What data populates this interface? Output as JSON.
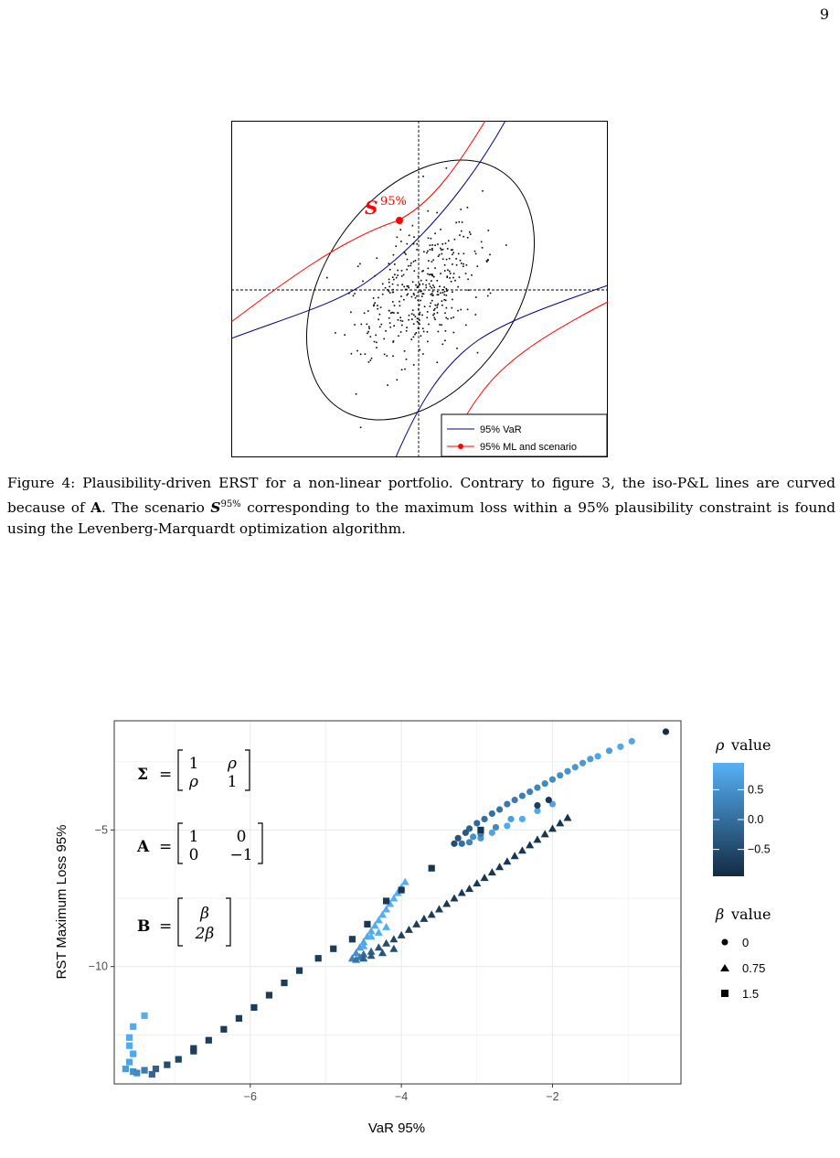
{
  "page_number": "9",
  "figure4": {
    "scenario_label": "S",
    "scenario_superscript": "95%",
    "legend": [
      {
        "label": "95% VaR",
        "color": "#00008b"
      },
      {
        "label": "95% ML and scenario",
        "color": "#ff0000"
      }
    ],
    "colors": {
      "var": "#00008b",
      "ml": "#ff0000",
      "ellipse": "#000000"
    }
  },
  "caption": {
    "p1": "Figure 4: Plausibility-driven ERST for a non-linear portfolio. Contrary to figure 3, the iso-P&L lines are curved because of ",
    "bold_A": "A",
    "p2": ". The scenario ",
    "bold_S": "S",
    "sup": "95%",
    "p3": " corresponding to the maximum loss within a 95% plausibility constraint is found using the Levenberg-Marquardt optimization algorithm."
  },
  "chart_data": {
    "type": "scatter",
    "xlabel": "VaR 95%",
    "ylabel": "RST Maximum Loss 95%",
    "xlim": [
      -7.8,
      -0.3
    ],
    "ylim": [
      -14.3,
      -1.0
    ],
    "xticks": [
      -6,
      -4,
      -2
    ],
    "xtick_labels": [
      "−6",
      "−4",
      "−2"
    ],
    "yticks": [
      -5,
      -10
    ],
    "ytick_labels": [
      "−5",
      "−10"
    ],
    "annotations": {
      "sigma": {
        "lhs": "Σ",
        "matrix": [
          [
            "1",
            "ρ"
          ],
          [
            "ρ",
            "1"
          ]
        ]
      },
      "A": {
        "lhs": "A",
        "matrix": [
          [
            "1",
            "0"
          ],
          [
            "0",
            "−1"
          ]
        ]
      },
      "B": {
        "lhs": "B",
        "matrix": [
          [
            "β"
          ],
          [
            "2β"
          ]
        ]
      }
    },
    "color_legend": {
      "title_symbol": "ρ",
      "title_text": "value",
      "ticks": [
        "0.5",
        "0.0",
        "−0.5"
      ],
      "low_color": "#132b43",
      "high_color": "#56b1f7"
    },
    "shape_legend": {
      "title_symbol": "β",
      "title_text": "value",
      "items": [
        {
          "shape": "circle",
          "label": "0"
        },
        {
          "shape": "triangle",
          "label": "0.75"
        },
        {
          "shape": "square",
          "label": "1.5"
        }
      ]
    },
    "series": [
      {
        "beta": "0",
        "shape": "circle",
        "points": [
          [
            -0.5,
            -1.4,
            -0.95
          ],
          [
            -0.95,
            -1.75,
            0.85
          ],
          [
            -1.1,
            -1.95,
            0.85
          ],
          [
            -1.25,
            -2.1,
            0.75
          ],
          [
            -1.4,
            -2.3,
            0.8
          ],
          [
            -1.5,
            -2.4,
            0.7
          ],
          [
            -1.6,
            -2.55,
            0.65
          ],
          [
            -1.7,
            -2.7,
            0.6
          ],
          [
            -1.8,
            -2.85,
            0.55
          ],
          [
            -1.9,
            -3.0,
            0.5
          ],
          [
            -2.0,
            -3.15,
            0.45
          ],
          [
            -2.1,
            -3.3,
            0.4
          ],
          [
            -2.2,
            -3.45,
            0.35
          ],
          [
            -2.3,
            -3.6,
            0.3
          ],
          [
            -2.4,
            -3.75,
            0.25
          ],
          [
            -2.5,
            -3.9,
            0.2
          ],
          [
            -2.6,
            -4.05,
            0.15
          ],
          [
            -2.7,
            -4.25,
            0.1
          ],
          [
            -2.8,
            -4.4,
            0.05
          ],
          [
            -2.9,
            -4.6,
            0.0
          ],
          [
            -3.0,
            -4.75,
            -0.1
          ],
          [
            -3.1,
            -4.95,
            -0.2
          ],
          [
            -3.15,
            -5.1,
            -0.3
          ],
          [
            -3.25,
            -5.3,
            -0.4
          ],
          [
            -3.3,
            -5.5,
            -0.5
          ],
          [
            -3.2,
            -5.5,
            0.0
          ],
          [
            -3.1,
            -5.45,
            0.3
          ],
          [
            -2.95,
            -5.3,
            0.6
          ],
          [
            -2.8,
            -5.1,
            0.8
          ],
          [
            -2.6,
            -4.85,
            0.9
          ],
          [
            -2.4,
            -4.6,
            0.9
          ],
          [
            -2.2,
            -4.3,
            0.85
          ],
          [
            -2.0,
            -4.05,
            0.8
          ],
          [
            -2.05,
            -3.9,
            -0.8
          ],
          [
            -2.2,
            -4.1,
            -0.7
          ],
          [
            -2.55,
            -4.6,
            0.7
          ],
          [
            -2.75,
            -4.9,
            0.4
          ],
          [
            -2.95,
            -5.15,
            0.2
          ],
          [
            -3.05,
            -5.25,
            0.5
          ]
        ]
      },
      {
        "beta": "0.75",
        "shape": "triangle",
        "points": [
          [
            -4.55,
            -9.65,
            0.2
          ],
          [
            -4.5,
            -9.55,
            0.0
          ],
          [
            -4.4,
            -9.45,
            -0.2
          ],
          [
            -4.3,
            -9.3,
            -0.4
          ],
          [
            -4.2,
            -9.15,
            -0.5
          ],
          [
            -4.1,
            -9.0,
            -0.6
          ],
          [
            -4.0,
            -8.85,
            -0.65
          ],
          [
            -3.9,
            -8.65,
            -0.7
          ],
          [
            -3.8,
            -8.45,
            -0.7
          ],
          [
            -3.7,
            -8.25,
            -0.75
          ],
          [
            -3.6,
            -8.1,
            -0.75
          ],
          [
            -3.5,
            -7.9,
            -0.75
          ],
          [
            -3.4,
            -7.7,
            -0.8
          ],
          [
            -3.3,
            -7.5,
            -0.8
          ],
          [
            -3.2,
            -7.3,
            -0.8
          ],
          [
            -3.1,
            -7.15,
            -0.8
          ],
          [
            -3.0,
            -6.95,
            -0.8
          ],
          [
            -2.9,
            -6.75,
            -0.85
          ],
          [
            -2.8,
            -6.55,
            -0.85
          ],
          [
            -2.7,
            -6.35,
            -0.85
          ],
          [
            -2.6,
            -6.15,
            -0.85
          ],
          [
            -2.5,
            -5.95,
            -0.85
          ],
          [
            -2.4,
            -5.75,
            -0.85
          ],
          [
            -2.3,
            -5.55,
            -0.85
          ],
          [
            -2.2,
            -5.35,
            -0.85
          ],
          [
            -2.1,
            -5.15,
            -0.85
          ],
          [
            -2.0,
            -4.95,
            -0.85
          ],
          [
            -1.9,
            -4.75,
            -0.85
          ],
          [
            -1.8,
            -4.55,
            -0.9
          ],
          [
            -4.6,
            -9.5,
            0.5
          ],
          [
            -4.55,
            -9.3,
            0.7
          ],
          [
            -4.5,
            -9.1,
            0.8
          ],
          [
            -4.45,
            -8.9,
            0.85
          ],
          [
            -4.4,
            -8.7,
            0.9
          ],
          [
            -4.35,
            -8.5,
            0.9
          ],
          [
            -4.3,
            -8.3,
            0.95
          ],
          [
            -4.25,
            -8.1,
            0.95
          ],
          [
            -4.2,
            -7.9,
            0.95
          ],
          [
            -4.15,
            -7.7,
            0.95
          ],
          [
            -4.1,
            -7.5,
            0.95
          ],
          [
            -4.05,
            -7.3,
            0.95
          ],
          [
            -4.0,
            -7.1,
            0.95
          ],
          [
            -3.95,
            -6.9,
            0.95
          ],
          [
            -4.4,
            -8.9,
            0.95
          ],
          [
            -4.3,
            -8.75,
            0.95
          ],
          [
            -4.2,
            -8.55,
            0.95
          ],
          [
            -4.5,
            -9.25,
            0.9
          ],
          [
            -4.65,
            -9.7,
            0.3
          ],
          [
            -4.6,
            -9.75,
            0.1
          ],
          [
            -4.5,
            -9.7,
            -0.2
          ],
          [
            -4.4,
            -9.6,
            -0.3
          ],
          [
            -4.25,
            -9.5,
            -0.4
          ],
          [
            -4.1,
            -9.35,
            -0.5
          ]
        ]
      },
      {
        "beta": "1.5",
        "shape": "square",
        "points": [
          [
            -7.6,
            -12.6,
            0.9
          ],
          [
            -7.6,
            -12.9,
            0.9
          ],
          [
            -7.55,
            -13.2,
            0.85
          ],
          [
            -7.6,
            -13.5,
            0.8
          ],
          [
            -7.65,
            -13.75,
            0.7
          ],
          [
            -7.55,
            -13.85,
            0.5
          ],
          [
            -7.4,
            -13.8,
            0.2
          ],
          [
            -7.25,
            -13.75,
            -0.2
          ],
          [
            -7.1,
            -13.6,
            -0.5
          ],
          [
            -6.95,
            -13.4,
            -0.6
          ],
          [
            -6.75,
            -13.1,
            -0.7
          ],
          [
            -6.55,
            -12.7,
            -0.7
          ],
          [
            -6.35,
            -12.3,
            -0.75
          ],
          [
            -6.15,
            -11.9,
            -0.75
          ],
          [
            -5.95,
            -11.5,
            -0.75
          ],
          [
            -5.75,
            -11.05,
            -0.75
          ],
          [
            -5.55,
            -10.6,
            -0.75
          ],
          [
            -5.35,
            -10.15,
            -0.75
          ],
          [
            -5.1,
            -9.7,
            -0.75
          ],
          [
            -4.9,
            -9.35,
            -0.75
          ],
          [
            -4.65,
            -9.0,
            -0.75
          ],
          [
            -4.45,
            -8.45,
            -0.8
          ],
          [
            -4.2,
            -7.6,
            -0.8
          ],
          [
            -4.0,
            -7.2,
            -0.8
          ],
          [
            -3.6,
            -6.4,
            -0.85
          ],
          [
            -2.95,
            -5.0,
            -0.85
          ],
          [
            -7.4,
            -11.8,
            0.95
          ],
          [
            -7.55,
            -12.2,
            0.9
          ],
          [
            -7.5,
            -13.9,
            0.4
          ],
          [
            -7.3,
            -13.95,
            -0.1
          ],
          [
            -6.75,
            -13.0,
            -0.7
          ]
        ]
      }
    ]
  }
}
